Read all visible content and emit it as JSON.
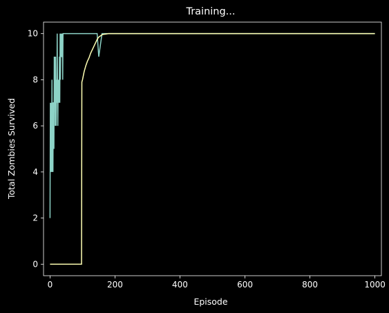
{
  "chart_data": {
    "type": "line",
    "title": "Training...",
    "xlabel": "Episode",
    "ylabel": "Total Zombies Survived",
    "xlim": [
      -20,
      1020
    ],
    "ylim": [
      -0.5,
      10.5
    ],
    "xticks": [
      0,
      200,
      400,
      600,
      800,
      1000
    ],
    "yticks": [
      0,
      2,
      4,
      6,
      8,
      10
    ],
    "grid": false,
    "background": "#000000",
    "foreground": "#ffffff",
    "series": [
      {
        "color": "#8dd3c7",
        "x": [
          0,
          1,
          2,
          3,
          4,
          5,
          6,
          7,
          8,
          9,
          10,
          11,
          12,
          13,
          14,
          15,
          16,
          17,
          18,
          19,
          20,
          21,
          22,
          23,
          24,
          25,
          26,
          27,
          28,
          29,
          30,
          31,
          32,
          33,
          34,
          35,
          36,
          37,
          38,
          39,
          40,
          41,
          42,
          43,
          44,
          45,
          46,
          47,
          48,
          49,
          50,
          51,
          52,
          53,
          54,
          55,
          56,
          57,
          58,
          59,
          60,
          61,
          62,
          63,
          64,
          65,
          66,
          67,
          68,
          69,
          70,
          71,
          72,
          73,
          74,
          75,
          76,
          77,
          78,
          79,
          80,
          81,
          82,
          83,
          84,
          85,
          86,
          87,
          88,
          89,
          90,
          95,
          100,
          105,
          110,
          115,
          120,
          125,
          130,
          135,
          140,
          145,
          150,
          160,
          170,
          180,
          190,
          200,
          300,
          400,
          500,
          600,
          700,
          800,
          900,
          1000
        ],
        "y": [
          2,
          7,
          4,
          7,
          5,
          4,
          8,
          4,
          7,
          4,
          7,
          7,
          5,
          9,
          8,
          9,
          6,
          9,
          7,
          6,
          8,
          7,
          10,
          8,
          6,
          8,
          7,
          8,
          7,
          9,
          7,
          10,
          8,
          10,
          9,
          10,
          9,
          9,
          10,
          8,
          10,
          10,
          10,
          10,
          10,
          10,
          10,
          10,
          10,
          10,
          10,
          10,
          10,
          10,
          10,
          10,
          10,
          10,
          10,
          10,
          10,
          10,
          10,
          10,
          10,
          10,
          10,
          10,
          10,
          10,
          10,
          10,
          10,
          10,
          10,
          10,
          10,
          10,
          10,
          10,
          10,
          10,
          10,
          10,
          10,
          10,
          10,
          10,
          10,
          10,
          10,
          10,
          10,
          10,
          10,
          10,
          10,
          10,
          10,
          10,
          10,
          10,
          9,
          10,
          10,
          10,
          10,
          10,
          10,
          10,
          10,
          10,
          10,
          10,
          10,
          10
        ]
      },
      {
        "color": "#ffffb3",
        "x": [
          0,
          10,
          20,
          30,
          40,
          50,
          60,
          70,
          80,
          90,
          97,
          98,
          100,
          105,
          110,
          115,
          120,
          125,
          130,
          135,
          140,
          145,
          150,
          155,
          160,
          165,
          170,
          175,
          180,
          190,
          200,
          220,
          250,
          300,
          400,
          500,
          600,
          700,
          800,
          900,
          1000
        ],
        "y": [
          0,
          0,
          0,
          0,
          0,
          0,
          0,
          0,
          0,
          0,
          0,
          7.9,
          8.0,
          8.35,
          8.6,
          8.8,
          8.95,
          9.15,
          9.3,
          9.45,
          9.6,
          9.75,
          9.85,
          9.9,
          9.95,
          9.97,
          9.98,
          9.99,
          10,
          10,
          10,
          10,
          10,
          10,
          10,
          10,
          10,
          10,
          10,
          10,
          10
        ]
      }
    ]
  }
}
